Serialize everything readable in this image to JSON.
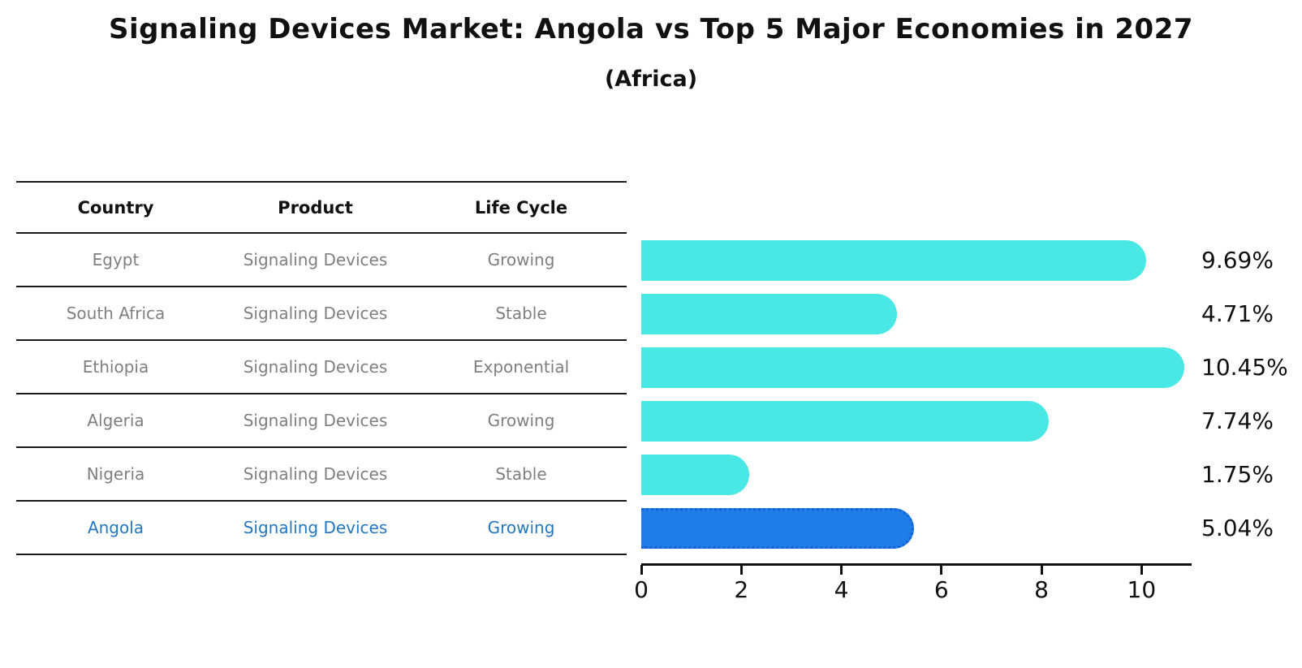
{
  "title": "Signaling Devices Market: Angola vs Top 5 Major Economies in 2027",
  "subtitle": "(Africa)",
  "table": {
    "headers": [
      "Country",
      "Product",
      "Life Cycle"
    ],
    "rows": [
      {
        "country": "Egypt",
        "product": "Signaling Devices",
        "life_cycle": "Growing"
      },
      {
        "country": "South Africa",
        "product": "Signaling Devices",
        "life_cycle": "Stable"
      },
      {
        "country": "Ethiopia",
        "product": "Signaling Devices",
        "life_cycle": "Exponential"
      },
      {
        "country": "Algeria",
        "product": "Signaling Devices",
        "life_cycle": "Growing"
      },
      {
        "country": "Nigeria",
        "product": "Signaling Devices",
        "life_cycle": "Stable"
      },
      {
        "country": "Angola",
        "product": "Signaling Devices",
        "life_cycle": "Growing"
      }
    ]
  },
  "chart_data": {
    "type": "bar",
    "orientation": "horizontal",
    "title": "Signaling Devices Market: Angola vs Top 5 Major Economies in 2027",
    "subtitle": "(Africa)",
    "categories": [
      "Egypt",
      "South Africa",
      "Ethiopia",
      "Algeria",
      "Nigeria",
      "Angola"
    ],
    "values": [
      9.69,
      4.71,
      10.45,
      7.74,
      1.75,
      5.04
    ],
    "value_labels": [
      "9.69%",
      "4.71%",
      "10.45%",
      "7.74%",
      "1.75%",
      "5.04%"
    ],
    "unit": "percent",
    "xlabel": "",
    "ylabel": "",
    "xticks": [
      0,
      2,
      4,
      6,
      8,
      10
    ],
    "xlim": [
      0,
      11
    ],
    "grid": false,
    "legend": false,
    "highlight_index": 5,
    "highlight_category": "Angola"
  },
  "colors": {
    "bar_fill": "#4AE8E4",
    "highlight_fill": "#1E7DE8",
    "highlight_border": "#1563D2",
    "highlight_text": "#2577BE",
    "muted_text": "#7F7F7F",
    "heading_text": "#111111",
    "rule": "#1A1A1A"
  }
}
